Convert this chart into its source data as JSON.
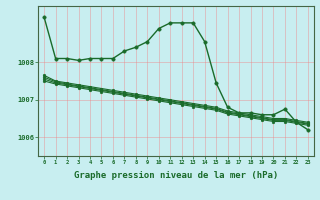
{
  "background_color": "#c8eef0",
  "plot_bg_color": "#c8eef0",
  "grid_color": "#f08080",
  "line_color": "#1a6b2a",
  "xlabel": "Graphe pression niveau de la mer (hPa)",
  "xlabel_fontsize": 6.5,
  "xtick_labels": [
    "0",
    "1",
    "2",
    "3",
    "4",
    "5",
    "6",
    "7",
    "8",
    "9",
    "10",
    "11",
    "12",
    "13",
    "14",
    "15",
    "16",
    "17",
    "18",
    "19",
    "20",
    "21",
    "22",
    "23"
  ],
  "ytick_values": [
    1006,
    1007,
    1008
  ],
  "ylim": [
    1005.5,
    1009.5
  ],
  "xlim": [
    -0.5,
    23.5
  ],
  "series1": [
    1009.2,
    1008.1,
    1008.1,
    1008.05,
    1008.1,
    1008.1,
    1008.1,
    1008.3,
    1008.4,
    1008.55,
    1008.9,
    1009.05,
    1009.05,
    1009.05,
    1008.55,
    1007.45,
    1006.8,
    1006.65,
    1006.65,
    1006.6,
    1006.6,
    1006.75,
    1006.4,
    1006.2
  ],
  "series_bundle": [
    [
      1007.65,
      1007.5,
      1007.45,
      1007.4,
      1007.35,
      1007.3,
      1007.25,
      1007.2,
      1007.15,
      1007.1,
      1007.05,
      1007.0,
      1006.95,
      1006.9,
      1006.85,
      1006.8,
      1006.7,
      1006.65,
      1006.6,
      1006.55,
      1006.5,
      1006.5,
      1006.45,
      1006.4
    ],
    [
      1007.6,
      1007.48,
      1007.42,
      1007.37,
      1007.32,
      1007.27,
      1007.22,
      1007.17,
      1007.12,
      1007.07,
      1007.02,
      1006.97,
      1006.92,
      1006.87,
      1006.82,
      1006.77,
      1006.67,
      1006.62,
      1006.57,
      1006.52,
      1006.47,
      1006.47,
      1006.42,
      1006.37
    ],
    [
      1007.55,
      1007.45,
      1007.4,
      1007.35,
      1007.3,
      1007.25,
      1007.2,
      1007.15,
      1007.1,
      1007.05,
      1007.0,
      1006.95,
      1006.9,
      1006.85,
      1006.8,
      1006.75,
      1006.65,
      1006.6,
      1006.55,
      1006.5,
      1006.45,
      1006.45,
      1006.4,
      1006.35
    ],
    [
      1007.5,
      1007.42,
      1007.37,
      1007.32,
      1007.27,
      1007.22,
      1007.17,
      1007.12,
      1007.07,
      1007.02,
      1006.97,
      1006.92,
      1006.87,
      1006.82,
      1006.77,
      1006.72,
      1006.62,
      1006.57,
      1006.52,
      1006.47,
      1006.42,
      1006.42,
      1006.37,
      1006.32
    ]
  ],
  "marker_size1": 2.5,
  "marker_size_bundle": 2.0,
  "linewidth1": 1.0,
  "linewidth_bundle": 0.8
}
